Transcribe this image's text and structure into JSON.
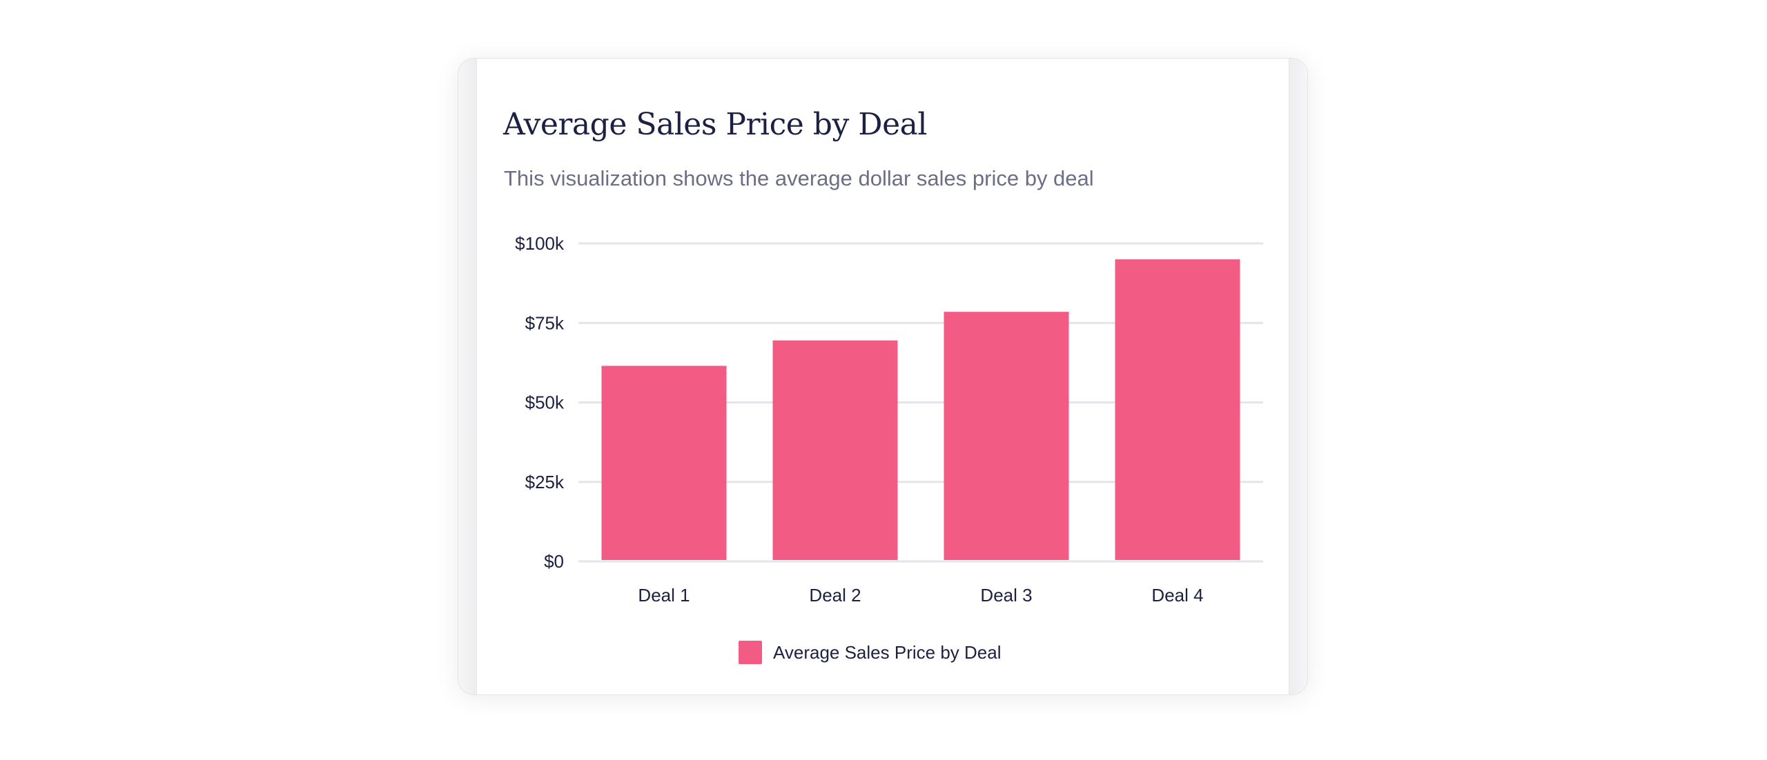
{
  "chart_data": {
    "type": "bar",
    "title": "Average Sales Price by Deal",
    "subtitle": "This visualization shows the average dollar sales price by deal",
    "categories": [
      "Deal 1",
      "Deal 2",
      "Deal 3",
      "Deal 4"
    ],
    "series": [
      {
        "name": "Average Sales Price by Deal",
        "values": [
          61500,
          69500,
          78500,
          95000
        ],
        "color": "#f25b84"
      }
    ],
    "y_ticks": [
      {
        "value": 100000,
        "label": "$100k"
      },
      {
        "value": 75000,
        "label": "$75k"
      },
      {
        "value": 50000,
        "label": "$50k"
      },
      {
        "value": 25000,
        "label": "$25k"
      },
      {
        "value": 0,
        "label": "$0"
      }
    ],
    "ylim": [
      0,
      100000
    ],
    "grid": true,
    "legend_position": "bottom-center",
    "xlabel": "",
    "ylabel": ""
  }
}
